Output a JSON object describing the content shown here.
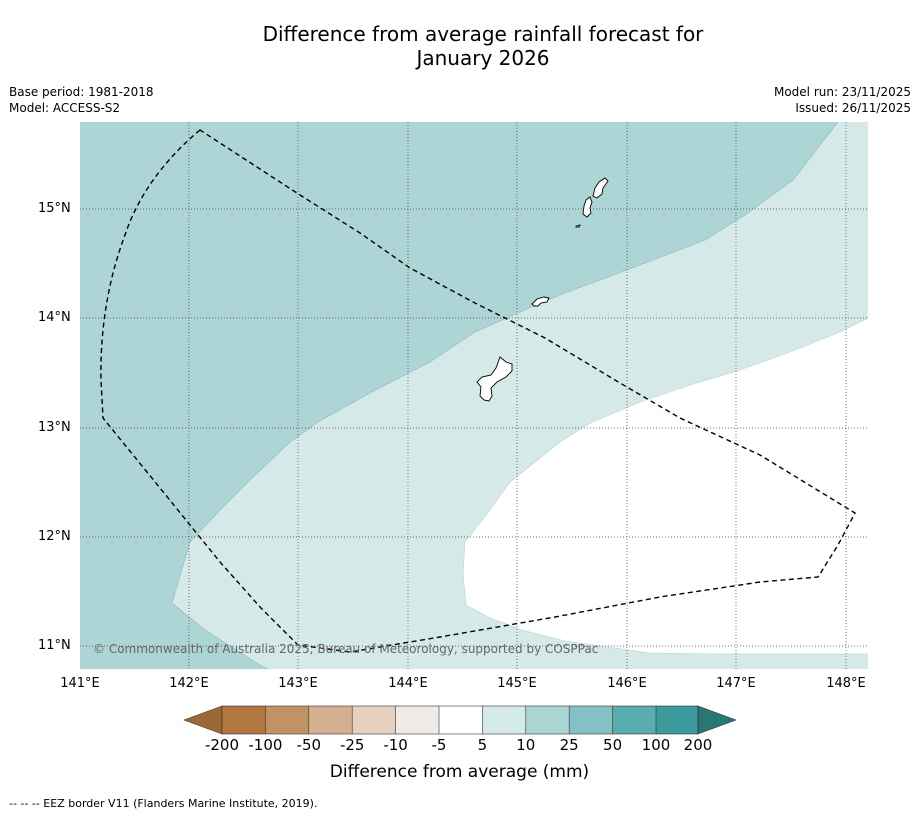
{
  "title": {
    "line1": "Difference from average rainfall forecast for",
    "line2": "January 2026"
  },
  "meta": {
    "base_period": "Base period: 1981-2018",
    "model": "Model: ACCESS-S2",
    "model_run": "Model run: 23/11/2025",
    "issued": "Issued: 26/11/2025"
  },
  "map": {
    "latitude_labels": [
      "15°N",
      "14°N",
      "13°N",
      "12°N",
      "11°N"
    ],
    "longitude_labels": [
      "141°E",
      "142°E",
      "143°E",
      "144°E",
      "145°E",
      "146°E",
      "147°E",
      "148°E"
    ],
    "copyright": "© Commonwealth of Australia 2025, Bureau of Meteorology, supported by COSPPac",
    "colors": {
      "cat_25_50": "#add5d6",
      "cat_10_25": "#d5e9e8",
      "cat_neutral": "#ffffff",
      "grid": "#333333",
      "eez": "#000000"
    }
  },
  "colorbar": {
    "title": "Difference from average (mm)",
    "labels": [
      "-200",
      "-100",
      "-50",
      "-25",
      "-10",
      "-5",
      "5",
      "10",
      "25",
      "50",
      "100",
      "200"
    ],
    "colors": [
      "#9e6736",
      "#b07840",
      "#c09266",
      "#d4b090",
      "#e6d0be",
      "#eeeae6",
      "#ffffff",
      "#d5e9e8",
      "#add5d6",
      "#85c0c2",
      "#5aadaf",
      "#3a9a9c",
      "#277775"
    ]
  },
  "footnote": "--  --  -- EEZ border V11 (Flanders Marine Institute, 2019)."
}
